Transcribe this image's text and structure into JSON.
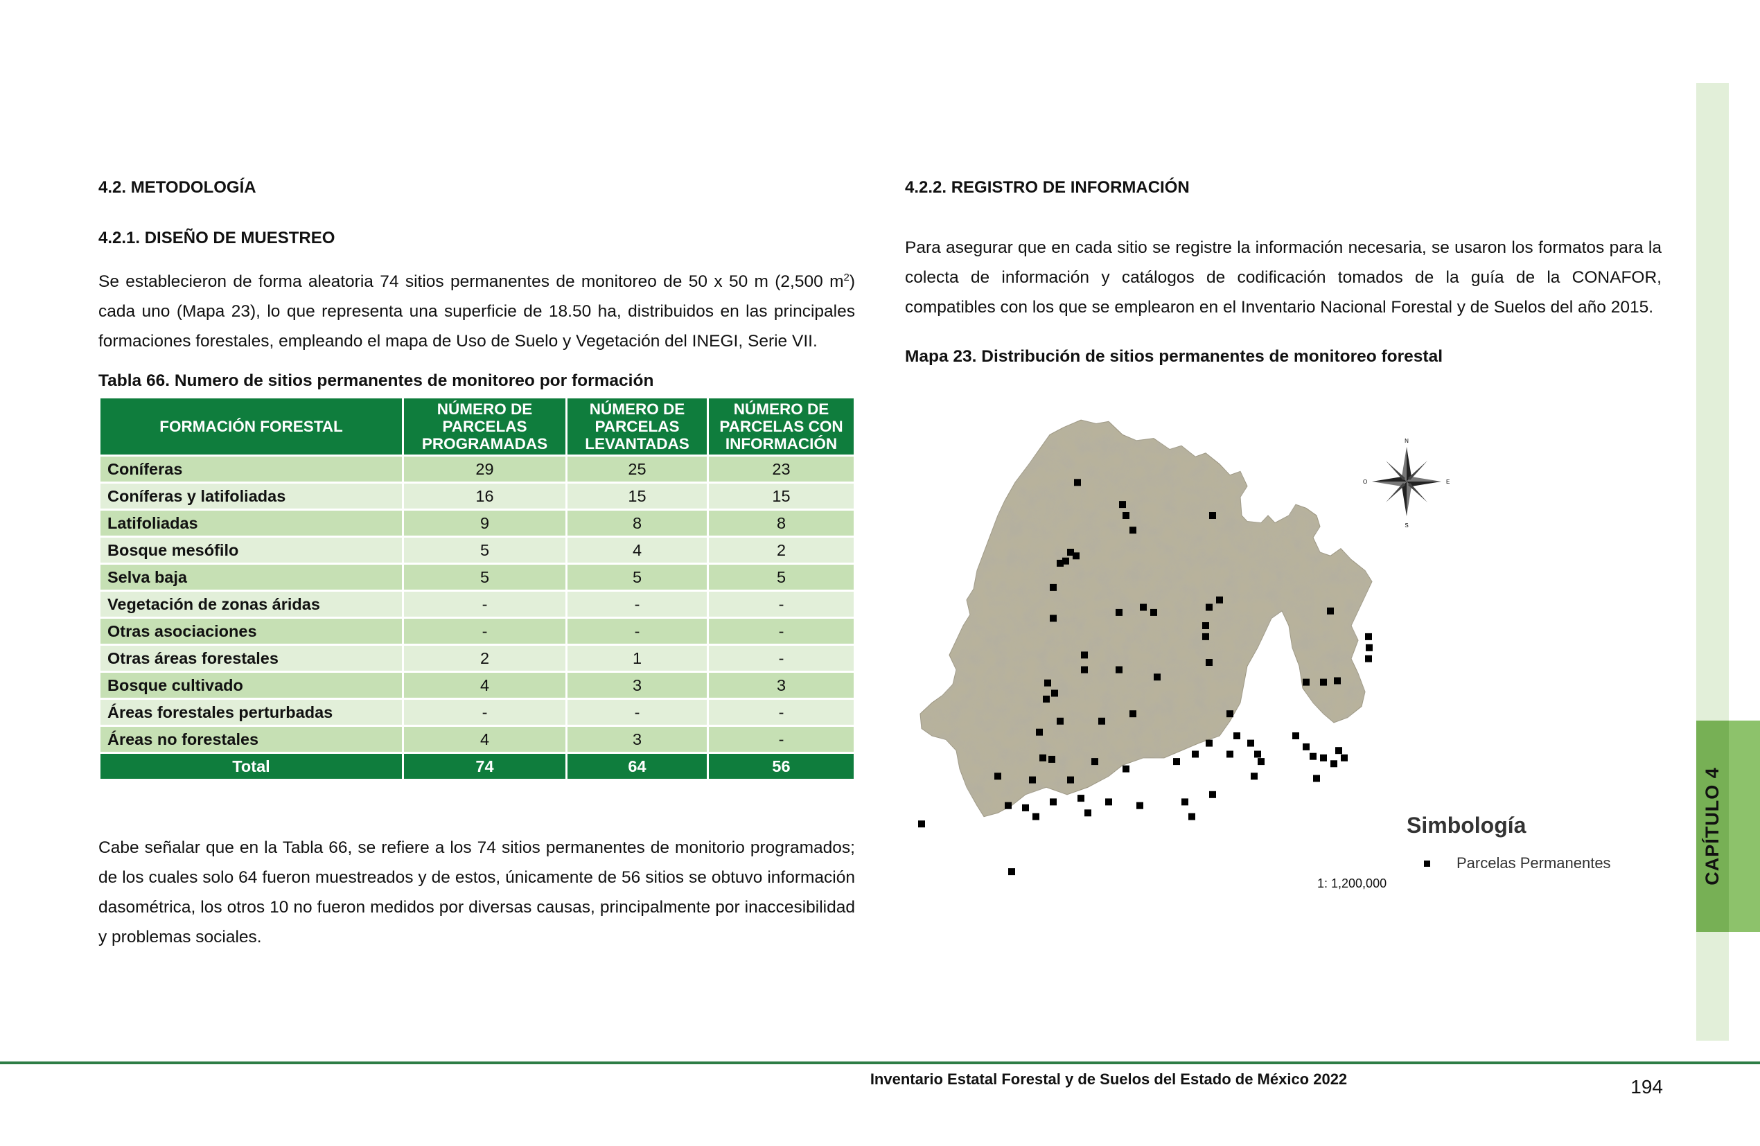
{
  "chapter_tab": "CAPÍTULO 4",
  "left": {
    "h1": "4.2. METODOLOGÍA",
    "h2": "4.2.1. DISEÑO DE MUESTREO",
    "p1_before_sup": "Se establecieron de forma aleatoria 74 sitios permanentes de monitoreo de 50 x 50 m (2,500 m",
    "p1_sup": "2",
    "p1_after_sup": ") cada uno (Mapa 23), lo que representa una superficie de 18.50 ha, distribuidos en las principales formaciones forestales, empleando el mapa de Uso de Suelo y Vegetación del INEGI, Serie VII.",
    "table_caption": "Tabla 66.  Numero de sitios permanentes de monitoreo por formación",
    "p2": "Cabe señalar que en la Tabla 66, se refiere a los 74 sitios permanentes de monitorio programados; de los cuales solo 64 fueron muestreados y de estos, únicamente de 56 sitios se obtuvo información dasométrica, los otros 10 no fueron medidos por diversas causas, principalmente por inaccesibilidad y problemas sociales."
  },
  "table": {
    "headers": [
      "FORMACIÓN FORESTAL",
      "NÚMERO DE PARCELAS PROGRAMADAS",
      "NÚMERO DE PARCELAS LEVANTADAS",
      "NÚMERO DE PARCELAS CON INFORMACIÓN"
    ],
    "rows": [
      [
        "Coníferas",
        "29",
        "25",
        "23"
      ],
      [
        "Coníferas y latifoliadas",
        "16",
        "15",
        "15"
      ],
      [
        "Latifoliadas",
        "9",
        "8",
        "8"
      ],
      [
        "Bosque mesófilo",
        "5",
        "4",
        "2"
      ],
      [
        "Selva baja",
        "5",
        "5",
        "5"
      ],
      [
        "Vegetación de zonas áridas",
        "-",
        "-",
        "-"
      ],
      [
        "Otras asociaciones",
        "-",
        "-",
        "-"
      ],
      [
        "Otras áreas forestales",
        "2",
        "1",
        "-"
      ],
      [
        "Bosque cultivado",
        "4",
        "3",
        "3"
      ],
      [
        "Áreas forestales perturbadas",
        "-",
        "-",
        "-"
      ],
      [
        "Áreas no forestales",
        "4",
        "3",
        "-"
      ]
    ],
    "total": [
      "Total",
      "74",
      "64",
      "56"
    ]
  },
  "right": {
    "h1": "4.2.2. REGISTRO DE INFORMACIÓN",
    "p1": "Para asegurar que en cada sitio se registre la información necesaria, se usaron los formatos para la colecta de información y catálogos de codificación tomados de la guía de la CONAFOR, compatibles con los que se emplearon en el Inventario Nacional Forestal y de Suelos del año 2015.",
    "map_caption": "Mapa 23. Distribución de sitios permanentes de monitoreo forestal"
  },
  "map": {
    "legend_title": "Simbología",
    "legend_item": "Parcelas Permanentes",
    "scale": "1: 1,200,000",
    "compass": {
      "n": "N",
      "s": "S",
      "e": "E",
      "o": "O"
    },
    "terrain_color": "#b8b29c",
    "marker_color": "#000000"
  },
  "footer": {
    "title": "Inventario Estatal Forestal y de Suelos del Estado de México 2022",
    "page": "194"
  }
}
